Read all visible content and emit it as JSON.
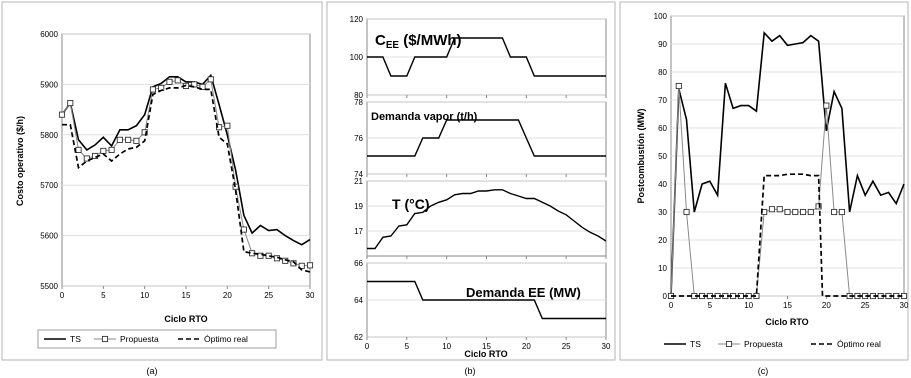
{
  "chart_data": [
    {
      "panel": "(a)",
      "type": "line",
      "xlabel": "Ciclo RTO",
      "ylabel": "Costo operativo ($/h)",
      "xlim": [
        0,
        30
      ],
      "ylim": [
        5500,
        6000
      ],
      "xticks": [
        0,
        5,
        10,
        15,
        20,
        25,
        30
      ],
      "yticks": [
        5500,
        5600,
        5700,
        5800,
        5900,
        6000
      ],
      "legend": "bottom",
      "series": [
        {
          "name": "TS",
          "style": "solid",
          "marker": "none",
          "x": [
            0,
            1,
            2,
            3,
            4,
            5,
            6,
            7,
            8,
            9,
            10,
            11,
            12,
            13,
            14,
            15,
            16,
            17,
            18,
            19,
            20,
            21,
            22,
            23,
            24,
            25,
            26,
            27,
            28,
            29,
            30
          ],
          "y": [
            5840,
            5863,
            5790,
            5770,
            5780,
            5795,
            5778,
            5810,
            5810,
            5818,
            5840,
            5895,
            5902,
            5915,
            5915,
            5905,
            5905,
            5900,
            5918,
            5860,
            5800,
            5730,
            5640,
            5605,
            5620,
            5610,
            5612,
            5600,
            5590,
            5582,
            5592
          ]
        },
        {
          "name": "Propuesta",
          "style": "solid",
          "marker": "square",
          "x": [
            0,
            1,
            2,
            3,
            4,
            5,
            6,
            7,
            8,
            9,
            10,
            11,
            12,
            13,
            14,
            15,
            16,
            17,
            18,
            19,
            20,
            21,
            22,
            23,
            24,
            25,
            26,
            27,
            28,
            29,
            30
          ],
          "y": [
            5840,
            5863,
            5770,
            5753,
            5758,
            5768,
            5770,
            5790,
            5790,
            5788,
            5805,
            5890,
            5893,
            5905,
            5908,
            5897,
            5900,
            5895,
            5910,
            5815,
            5818,
            5697,
            5612,
            5565,
            5560,
            5560,
            5555,
            5550,
            5545,
            5540,
            5541
          ]
        },
        {
          "name": "Óptimo real",
          "style": "dashed",
          "marker": "none",
          "x": [
            0,
            1,
            2,
            3,
            4,
            5,
            6,
            7,
            8,
            9,
            10,
            11,
            12,
            13,
            14,
            15,
            16,
            17,
            18,
            19,
            20,
            21,
            22,
            23,
            24,
            25,
            26,
            27,
            28,
            29,
            30
          ],
          "y": [
            5820,
            5820,
            5735,
            5748,
            5755,
            5762,
            5748,
            5762,
            5772,
            5775,
            5788,
            5880,
            5888,
            5893,
            5893,
            5898,
            5895,
            5890,
            5890,
            5795,
            5782,
            5690,
            5568,
            5565,
            5563,
            5560,
            5557,
            5552,
            5548,
            5532,
            5528
          ]
        }
      ]
    },
    {
      "panel": "(b)",
      "type": "line",
      "xlabel": "Ciclo RTO",
      "xlim": [
        0,
        30
      ],
      "xticks": [
        0,
        5,
        10,
        15,
        20,
        25,
        30
      ],
      "subplots": [
        {
          "title_main": "C",
          "title_sub": "EE",
          "title_rest": " ($/MWh)",
          "ylim": [
            80,
            120
          ],
          "yticks": [
            80,
            100,
            120
          ],
          "x": [
            0,
            2,
            3,
            5,
            6,
            10,
            11,
            17,
            18,
            20,
            21,
            30
          ],
          "y": [
            100,
            100,
            90,
            90,
            100,
            100,
            110,
            110,
            100,
            100,
            90,
            90
          ]
        },
        {
          "title": "Demanda vapor (t/h)",
          "ylim": [
            74,
            78
          ],
          "yticks": [
            74,
            76,
            78
          ],
          "x": [
            0,
            6,
            7,
            9,
            10,
            19,
            20,
            21,
            30
          ],
          "y": [
            75,
            75,
            76,
            76,
            77,
            77,
            76,
            75,
            75
          ]
        },
        {
          "title": "T (°C)",
          "ylim": [
            15,
            21
          ],
          "yticks": [
            17,
            19,
            21
          ],
          "x": [
            0,
            1,
            2,
            3,
            4,
            5,
            6,
            7,
            8,
            9,
            10,
            11,
            12,
            13,
            14,
            15,
            16,
            17,
            18,
            19,
            20,
            21,
            22,
            23,
            24,
            25,
            26,
            27,
            28,
            29,
            30
          ],
          "y": [
            15.6,
            15.6,
            16.5,
            16.6,
            17.4,
            17.5,
            18.4,
            18.5,
            19.0,
            19.3,
            19.5,
            19.9,
            20.0,
            20.0,
            20.2,
            20.2,
            20.3,
            20.3,
            20.0,
            19.8,
            19.6,
            19.6,
            19.3,
            19.0,
            18.6,
            18.3,
            17.8,
            17.3,
            16.9,
            16.6,
            16.2
          ]
        },
        {
          "title": "Demanda EE (MW)",
          "ylim": [
            62,
            66
          ],
          "yticks": [
            62,
            64,
            66
          ],
          "x": [
            0,
            6,
            7,
            21,
            22,
            30
          ],
          "y": [
            65,
            65,
            64,
            64,
            63,
            63
          ]
        }
      ]
    },
    {
      "panel": "(c)",
      "type": "line",
      "xlabel": "Ciclo RTO",
      "ylabel": "Postcombustión (MW)",
      "xlim": [
        0,
        30
      ],
      "ylim": [
        0,
        100
      ],
      "xticks": [
        0,
        5,
        10,
        15,
        20,
        25,
        30
      ],
      "yticks": [
        0,
        10,
        20,
        30,
        40,
        50,
        60,
        70,
        80,
        90,
        100
      ],
      "legend": "bottom",
      "series": [
        {
          "name": "TS",
          "style": "solid",
          "marker": "none",
          "x": [
            0,
            1,
            2,
            3,
            4,
            5,
            6,
            7,
            8,
            9,
            10,
            11,
            12,
            13,
            14,
            15,
            16,
            17,
            18,
            19,
            20,
            21,
            22,
            23,
            24,
            25,
            26,
            27,
            28,
            29,
            30
          ],
          "y": [
            0,
            74,
            63,
            30,
            40,
            41,
            36,
            76,
            67,
            68,
            68,
            66,
            94,
            91,
            93,
            89.5,
            90,
            90.5,
            93,
            91,
            59,
            73,
            67,
            30,
            43,
            36,
            41,
            36,
            37,
            33,
            40
          ]
        },
        {
          "name": "Propuesta",
          "style": "solid",
          "marker": "square",
          "x": [
            0,
            1,
            2,
            3,
            4,
            5,
            6,
            7,
            8,
            9,
            10,
            11,
            12,
            13,
            14,
            15,
            16,
            17,
            18,
            19,
            20,
            21,
            22,
            23,
            24,
            25,
            26,
            27,
            28,
            29,
            30
          ],
          "y": [
            0,
            75,
            30,
            0,
            0,
            0,
            0,
            0,
            0,
            0,
            0,
            0,
            30,
            31,
            31,
            30,
            30,
            30,
            30,
            32,
            68,
            30,
            30,
            0,
            0,
            0,
            0,
            0,
            0,
            0,
            0
          ]
        },
        {
          "name": "Óptimo real",
          "style": "dashed",
          "marker": "none",
          "x": [
            0,
            11,
            12,
            13,
            14,
            15,
            16,
            17,
            18,
            19,
            19.5,
            20,
            30
          ],
          "y": [
            0,
            0,
            43,
            43,
            43,
            43.5,
            43.5,
            43.5,
            43,
            43,
            0,
            0,
            0
          ]
        }
      ]
    }
  ]
}
